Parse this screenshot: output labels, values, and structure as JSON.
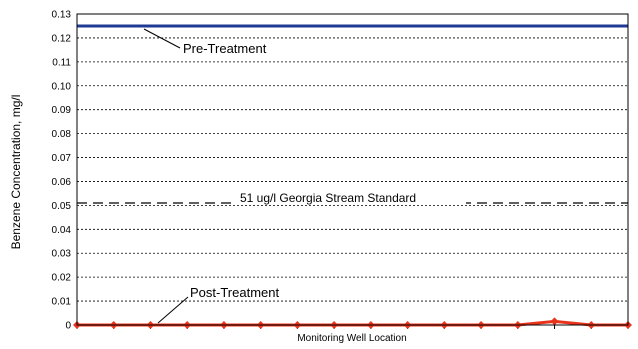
{
  "chart_data": {
    "type": "line",
    "ylabel": "Benzene Concentration, mg/l",
    "xlabel": "Monitoring Well Location",
    "ylim": [
      0,
      0.13
    ],
    "yticks": [
      "0",
      "0.01",
      "0.02",
      "0.03",
      "0.04",
      "0.05",
      "0.06",
      "0.07",
      "0.08",
      "0.09",
      "0.10",
      "0.11",
      "0.12",
      "0.13"
    ],
    "grid": true,
    "series": [
      {
        "name": "Pre-Treatment",
        "color": "#1f3a93",
        "values": [
          0.125,
          0.125,
          0.125,
          0.125,
          0.125,
          0.125,
          0.125,
          0.125,
          0.125,
          0.125,
          0.125,
          0.125,
          0.125,
          0.125,
          0.125,
          0.125
        ]
      },
      {
        "name": "51 ug/l Georgia Stream Standard",
        "color": "#000000",
        "dashed": true,
        "values": [
          0.051,
          0.051,
          0.051,
          0.051,
          0.051,
          0.051,
          0.051,
          0.051,
          0.051,
          0.051,
          0.051,
          0.051,
          0.051,
          0.051,
          0.051,
          0.051
        ]
      },
      {
        "name": "Post-Treatment",
        "color": "#e8341c",
        "markers": true,
        "values": [
          0,
          0,
          0,
          0,
          0,
          0,
          0,
          0,
          0,
          0,
          0,
          0,
          0,
          0.0015,
          0,
          0
        ]
      }
    ],
    "annotations": {
      "pre": "Pre-Treatment",
      "standard": "51 ug/l Georgia Stream Standard",
      "post": "Post-Treatment"
    }
  }
}
